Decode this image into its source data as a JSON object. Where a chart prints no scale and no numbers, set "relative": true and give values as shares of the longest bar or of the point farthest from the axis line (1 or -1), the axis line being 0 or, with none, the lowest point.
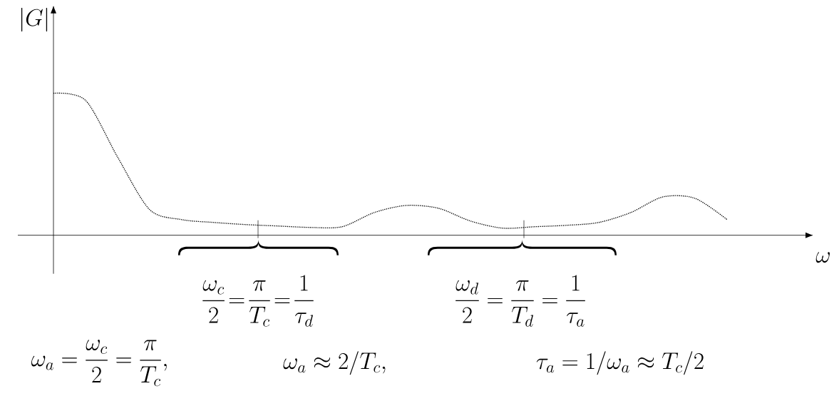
{
  "chart_data": {
    "type": "line",
    "relative": true,
    "categories": [
      null,
      null,
      null,
      null,
      null,
      null,
      null,
      null,
      null,
      null,
      null,
      null,
      null,
      null,
      null,
      null,
      null,
      null,
      null,
      null,
      null,
      null
    ],
    "values": [
      1.0,
      0.95,
      0.55,
      0.18,
      0.11,
      0.09,
      0.075,
      0.065,
      0.055,
      0.06,
      0.16,
      0.21,
      0.19,
      0.1,
      0.05,
      0.06,
      0.07,
      0.09,
      0.16,
      0.27,
      0.26,
      0.11
    ],
    "color": "#000000",
    "line_style": "dotted",
    "annotations": [
      "\\frac{\\omega_c}{2}\\!=\\!\\frac{\\pi}{T_c}\\!=\\!\\frac{1}{\\tau_d}",
      "\\frac{\\omega_d}{2} = \\frac{\\pi}{T_d} = \\frac{1}{\\tau_a}",
      "\\omega_a = \\frac{\\omega_c}{2} = \\frac{\\pi}{T_c},",
      "\\omega_a \\approx 2/T_c,",
      "\\tau_a = 1/\\omega_a \\approx T_c/2",
      "|G|",
      "\\omega"
    ]
  }
}
